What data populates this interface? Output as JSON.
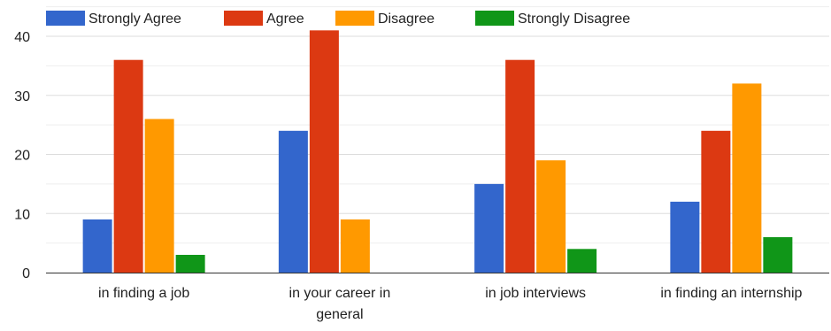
{
  "chart_data": {
    "type": "bar",
    "categories": [
      [
        "in finding a job"
      ],
      [
        "in your career in",
        "general"
      ],
      [
        "in job interviews"
      ],
      [
        "in finding an internship"
      ]
    ],
    "series": [
      {
        "name": "Strongly Agree",
        "color": "#3366cc",
        "values": [
          9,
          24,
          15,
          12
        ]
      },
      {
        "name": "Agree",
        "color": "#dc3912",
        "values": [
          36,
          41,
          36,
          24
        ]
      },
      {
        "name": "Disagree",
        "color": "#ff9900",
        "values": [
          26,
          9,
          19,
          32
        ]
      },
      {
        "name": "Strongly Disagree",
        "color": "#109618",
        "values": [
          3,
          0,
          4,
          6
        ]
      }
    ],
    "ylim": [
      0,
      40
    ],
    "yticks": [
      0,
      10,
      20,
      30,
      40
    ],
    "grid": true,
    "legend_position": "top"
  },
  "colors": {
    "grid": "#dddddd",
    "minor_grid": "#eeeeee",
    "axis": "#333333",
    "text": "#222222"
  }
}
